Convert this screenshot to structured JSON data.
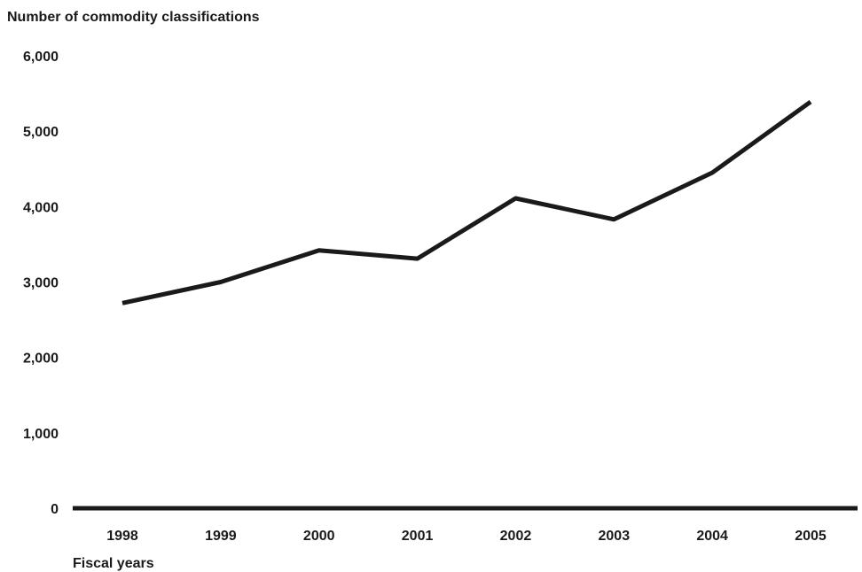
{
  "chart_data": {
    "type": "line",
    "title": "",
    "ylabel": "Number of commodity classifications",
    "xlabel": "Fiscal years",
    "categories": [
      "1998",
      "1999",
      "2000",
      "2001",
      "2002",
      "2003",
      "2004",
      "2005"
    ],
    "y_ticks": [
      "0",
      "1,000",
      "2,000",
      "3,000",
      "4,000",
      "5,000",
      "6,000"
    ],
    "y_tick_values": [
      0,
      1000,
      2000,
      3000,
      4000,
      5000,
      6000
    ],
    "ylim": [
      0,
      6000
    ],
    "series": [
      {
        "values": [
          2720,
          3000,
          3420,
          3310,
          4110,
          3830,
          4450,
          5390
        ]
      }
    ],
    "grid": false,
    "legend": "none",
    "line_color": "#1a1a1a",
    "axis_color": "#1a1a1a"
  }
}
